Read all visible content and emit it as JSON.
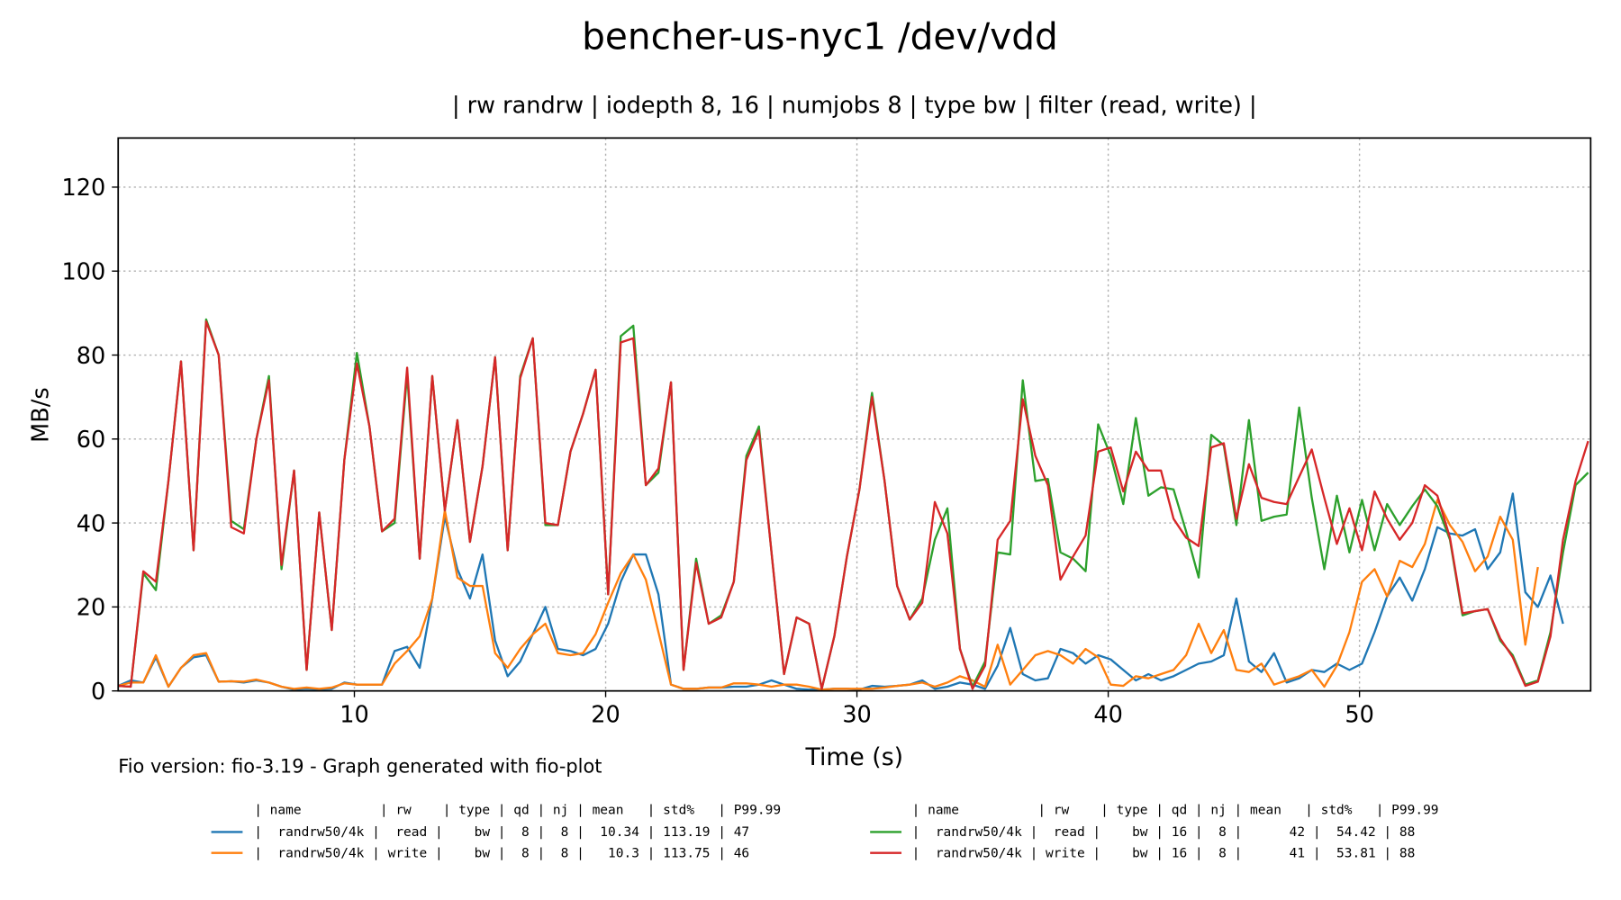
{
  "chart_data": {
    "type": "line",
    "title": "bencher-us-nyc1 /dev/vdd",
    "subtitle": "| rw randrw | iodepth 8, 16 | numjobs 8 | type bw | filter (read, write) |",
    "x_label": "Time (s)",
    "y_label": "MB/s",
    "footnote": "Fio version: fio-3.19 - Graph generated with fio-plot",
    "legend_header": [
      "| name          | rw    | type | qd | nj | mean   | std%   | P99.99",
      "| name          | rw    | type | qd | nj | mean   | std%   | P99.99"
    ],
    "xlim": [
      0.6,
      59.2
    ],
    "ylim": [
      0,
      131.7
    ],
    "xticks": [
      10,
      20,
      30,
      40,
      50
    ],
    "yticks": [
      0,
      20,
      40,
      60,
      80,
      100,
      120
    ],
    "grid": true,
    "x": [
      0.6,
      1.1,
      1.6,
      2.1,
      2.6,
      3.1,
      3.6,
      4.1,
      4.6,
      5.1,
      5.6,
      6.1,
      6.6,
      7.1,
      7.6,
      8.1,
      8.6,
      9.1,
      9.6,
      10.1,
      10.6,
      11.1,
      11.6,
      12.1,
      12.6,
      13.1,
      13.6,
      14.1,
      14.6,
      15.1,
      15.6,
      16.1,
      16.6,
      17.1,
      17.6,
      18.1,
      18.6,
      19.1,
      19.6,
      20.1,
      20.6,
      21.1,
      21.6,
      22.1,
      22.6,
      23.1,
      23.6,
      24.1,
      24.6,
      25.1,
      25.6,
      26.1,
      26.6,
      27.1,
      27.6,
      28.1,
      28.6,
      29.1,
      29.6,
      30.1,
      30.6,
      31.1,
      31.6,
      32.1,
      32.6,
      33.1,
      33.6,
      34.1,
      34.6,
      35.1,
      35.6,
      36.1,
      36.6,
      37.1,
      37.6,
      38.1,
      38.6,
      39.1,
      39.6,
      40.1,
      40.6,
      41.1,
      41.6,
      42.1,
      42.6,
      43.1,
      43.6,
      44.1,
      44.6,
      45.1,
      45.6,
      46.1,
      46.6,
      47.1,
      47.6,
      48.1,
      48.6,
      49.1,
      49.6,
      50.1,
      50.6,
      51.1,
      51.6,
      52.1,
      52.6,
      53.1,
      53.6,
      54.1,
      54.6,
      55.1,
      55.6,
      56.1,
      56.6,
      57.1,
      57.6,
      58.1,
      58.6,
      59.1
    ],
    "series": [
      {
        "name": "|  randrw50/4k |  read |    bw |  8 |  8 |  10.34 | 113.19 | 47",
        "color": "#1f77b4",
        "values": [
          1.2,
          2.5,
          2,
          8,
          1,
          5.5,
          8,
          8.5,
          2.2,
          2.3,
          2,
          2.5,
          2,
          1,
          0.3,
          0.5,
          0.3,
          0.5,
          2,
          1.5,
          1.5,
          1.5,
          9.5,
          10.5,
          5.5,
          22,
          41.5,
          29,
          22,
          32.5,
          12,
          3.5,
          7,
          13.5,
          20,
          10,
          9.5,
          8.5,
          10,
          16,
          26,
          32.5,
          32.5,
          23,
          1.5,
          0.5,
          0.5,
          0.8,
          0.8,
          1,
          1,
          1.5,
          2.5,
          1.5,
          0.5,
          0.3,
          0.3,
          0.5,
          0.5,
          0.3,
          1.2,
          1,
          1.2,
          1.5,
          2.5,
          0.5,
          1,
          2,
          1.5,
          0.5,
          6,
          15,
          4,
          2.5,
          3,
          10,
          9,
          6.5,
          8.5,
          7.5,
          5,
          2.5,
          4,
          2.5,
          3.5,
          5,
          6.5,
          7,
          8.5,
          22,
          7,
          4.5,
          9,
          2,
          3,
          5,
          4.5,
          6.5,
          5,
          6.5,
          14,
          22.5,
          27,
          21.5,
          29,
          39,
          37.5,
          37,
          38.5,
          29,
          33,
          47,
          23.5,
          20,
          27.5,
          16,
          null,
          null
        ]
      },
      {
        "name": "|  randrw50/4k | write |    bw |  8 |  8 |   10.3 | 113.75 | 46",
        "color": "#ff7f0e",
        "values": [
          1.2,
          2,
          2,
          8.5,
          1,
          5.5,
          8.5,
          9,
          2.2,
          2.3,
          2.2,
          2.7,
          2,
          1,
          0.5,
          0.8,
          0.5,
          0.8,
          1.8,
          1.5,
          1.5,
          1.5,
          6.5,
          9.5,
          13,
          22,
          43,
          27,
          25,
          25,
          9,
          5.5,
          10,
          13.5,
          16,
          9,
          8.5,
          9,
          13.5,
          21,
          28,
          32.5,
          26.5,
          14,
          1.5,
          0.5,
          0.5,
          0.8,
          0.8,
          1.8,
          1.8,
          1.5,
          1,
          1.5,
          1.5,
          1,
          0.3,
          0.5,
          0.5,
          0.5,
          0.5,
          0.8,
          1.2,
          1.5,
          2,
          1,
          2,
          3.5,
          2.5,
          1,
          11,
          1.5,
          5,
          8.5,
          9.5,
          8.5,
          6.5,
          10,
          8,
          1.5,
          1.2,
          3.5,
          3,
          4,
          5,
          8.5,
          16,
          9,
          14.5,
          5,
          4.5,
          6.5,
          1.5,
          2.5,
          3.5,
          5,
          1,
          6,
          14,
          26,
          29,
          22.5,
          31,
          29.5,
          35,
          45.5,
          39.5,
          35.5,
          28.5,
          32,
          41.5,
          36,
          11,
          29.5,
          null,
          null,
          null,
          null
        ]
      },
      {
        "name": "|  randrw50/4k |  read |    bw | 16 |  8 |      42 |  54.42 | 88",
        "color": "#2ca02c",
        "values": [
          1.2,
          1,
          28,
          24,
          50,
          78.5,
          33.5,
          88.5,
          80,
          40.5,
          38.5,
          60,
          75,
          29,
          52.5,
          5,
          42.5,
          14.5,
          55,
          80.5,
          63,
          38,
          40,
          75.5,
          31.5,
          75,
          43,
          64.5,
          35.5,
          53.5,
          79.5,
          33.5,
          75,
          84,
          39.5,
          39.5,
          57,
          66,
          76.5,
          23,
          84.5,
          87,
          49,
          52,
          73.5,
          5,
          31.5,
          16,
          18,
          26,
          56,
          63,
          33,
          4,
          17.5,
          16,
          0.5,
          13,
          32,
          48,
          71,
          50,
          25,
          17,
          22,
          36,
          43.5,
          10,
          1,
          7,
          33,
          32.5,
          74,
          50,
          50.5,
          33,
          31.5,
          28.5,
          63.5,
          56,
          44.5,
          65,
          46.5,
          48.5,
          48,
          38,
          27,
          61,
          58.5,
          39.5,
          64.5,
          40.5,
          41.5,
          42,
          67.5,
          46,
          29,
          46.5,
          33,
          45.5,
          33.5,
          44.5,
          39.5,
          44,
          48,
          44,
          36,
          18,
          19,
          19.5,
          12,
          8.5,
          1.5,
          2.5,
          14,
          33,
          49,
          52
        ]
      },
      {
        "name": "|  randrw50/4k | write |    bw | 16 |  8 |      41 |  53.81 | 88",
        "color": "#d62728",
        "values": [
          1.2,
          1,
          28.5,
          26,
          50,
          78.5,
          33.5,
          88,
          80,
          39,
          37.5,
          60,
          74,
          30,
          52.5,
          5,
          42.5,
          14.5,
          55,
          78,
          63,
          38,
          41,
          77,
          31.5,
          75,
          43,
          64.5,
          35.5,
          53.5,
          79.5,
          33.5,
          74.5,
          84,
          40,
          39.5,
          57,
          66,
          76.5,
          23,
          83,
          84,
          49,
          53,
          73.5,
          5,
          30.5,
          16,
          17.5,
          26,
          55,
          62,
          33,
          4,
          17.5,
          16,
          0.5,
          13,
          32,
          48,
          70,
          50,
          25,
          17,
          21,
          45,
          37.5,
          10,
          0.5,
          6,
          36,
          40.5,
          69.5,
          56,
          49,
          26.5,
          32,
          37,
          57,
          58,
          47.5,
          57,
          52.5,
          52.5,
          41,
          36.5,
          34.5,
          58,
          59,
          41,
          54,
          46,
          45,
          44.5,
          51,
          57.5,
          46,
          35,
          43.5,
          33.5,
          47.5,
          41,
          36,
          40,
          49,
          46.5,
          36.5,
          18.5,
          19,
          19.5,
          12.5,
          8,
          1.2,
          2.2,
          13,
          36,
          50,
          59.5
        ]
      }
    ]
  }
}
